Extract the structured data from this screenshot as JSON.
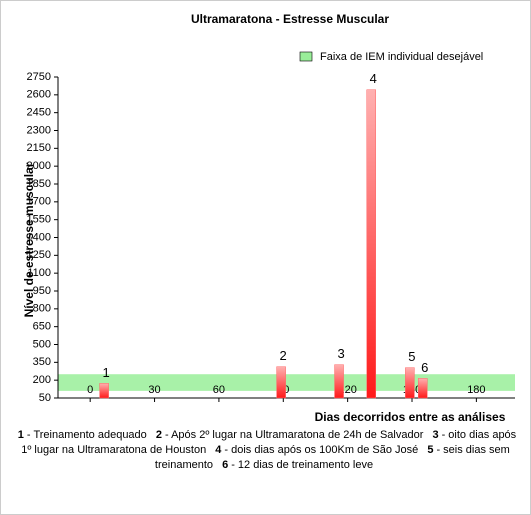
{
  "chart_data": {
    "type": "bar",
    "title": "Ultramaratona - Estresse Muscular",
    "x_label": "Dias decorridos entre as análises",
    "y_label": "Nível de estresse muscular",
    "x": [
      6.5,
      89,
      116,
      131,
      149,
      155
    ],
    "values": [
      173,
      313,
      330,
      2643,
      305,
      215
    ],
    "bar_labels": [
      "1",
      "2",
      "3",
      "4",
      "5",
      "6"
    ],
    "color": "#ff1a1a",
    "xlim": [
      -15,
      198
    ],
    "xticks": [
      0,
      30,
      60,
      90,
      120,
      150,
      180
    ],
    "ylim": [
      50,
      2750
    ],
    "yticks": [
      50,
      200,
      350,
      500,
      650,
      800,
      950,
      1100,
      1250,
      1400,
      1550,
      1700,
      1850,
      2000,
      2150,
      2300,
      2450,
      2600,
      2750
    ],
    "band": {
      "name": "Faixa de IEM individual desejável",
      "range": [
        110,
        250
      ],
      "color": "#99ee99"
    },
    "legend": "top-right",
    "notes": [
      {
        "number": "1",
        "text": "- Treinamento adequado"
      },
      {
        "number": "2",
        "text": "- Após 2º lugar na Ultramaratona de 24h de Salvador"
      },
      {
        "number": "3",
        "text": "- oito dias após 1º lugar na Ultramaratona de Houston"
      },
      {
        "number": "4",
        "text": "- dois dias após os 100Km de São José"
      },
      {
        "number": "5",
        "text": "- seis dias sem treinamento"
      },
      {
        "number": "6",
        "text": "- 12 dias de treinamento leve"
      }
    ]
  }
}
